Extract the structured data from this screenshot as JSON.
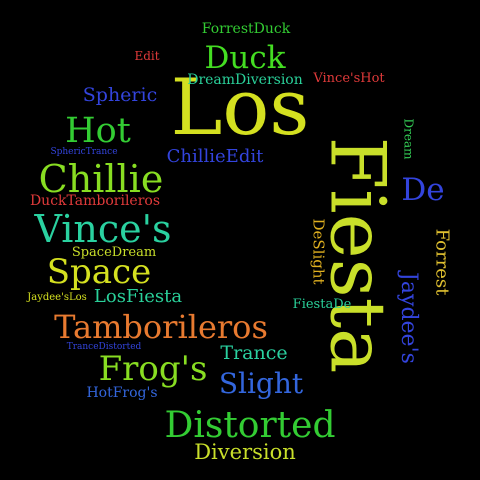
{
  "background": "#000000",
  "words": [
    {
      "id": "forrestduck",
      "text": "ForrestDuck",
      "color": "#33cc33",
      "rotated": false
    },
    {
      "id": "edit",
      "text": "Edit",
      "color": "#e03a3a",
      "rotated": false
    },
    {
      "id": "duck",
      "text": "Duck",
      "color": "#44dd22",
      "rotated": false
    },
    {
      "id": "los",
      "text": "Los",
      "color": "#d4e020",
      "rotated": false
    },
    {
      "id": "dreamdiversion",
      "text": "DreamDiversion",
      "color": "#2ad19a",
      "rotated": false
    },
    {
      "id": "vinceshot",
      "text": "Vince'sHot",
      "color": "#e03a3a",
      "rotated": false
    },
    {
      "id": "spheric",
      "text": "Spheric",
      "color": "#3344dd",
      "rotated": false
    },
    {
      "id": "hot",
      "text": "Hot",
      "color": "#33cc33",
      "rotated": false
    },
    {
      "id": "dream",
      "text": "Dream",
      "color": "#33cc55",
      "rotated": true
    },
    {
      "id": "spherictrance",
      "text": "SphericTrance",
      "color": "#3344dd",
      "rotated": false
    },
    {
      "id": "chillieedit",
      "text": "ChillieEdit",
      "color": "#3344dd",
      "rotated": false
    },
    {
      "id": "fiesta",
      "text": "Fiesta",
      "color": "#c9df2a",
      "rotated": true
    },
    {
      "id": "chillie",
      "text": "Chillie",
      "color": "#88dd22",
      "rotated": false
    },
    {
      "id": "de",
      "text": "De",
      "color": "#3344dd",
      "rotated": false
    },
    {
      "id": "ducktamborileros",
      "text": "DuckTamborileros",
      "color": "#e03a3a",
      "rotated": false
    },
    {
      "id": "vinces",
      "text": "Vince's",
      "color": "#2ad1a0",
      "rotated": false
    },
    {
      "id": "deslight",
      "text": "DeSlight",
      "color": "#e0b020",
      "rotated": true
    },
    {
      "id": "forrest",
      "text": "Forrest",
      "color": "#e0c030",
      "rotated": true
    },
    {
      "id": "spacedream",
      "text": "SpaceDream",
      "color": "#c9df2a",
      "rotated": false
    },
    {
      "id": "space",
      "text": "Space",
      "color": "#d4e020",
      "rotated": false
    },
    {
      "id": "jaydees",
      "text": "Jaydee's",
      "color": "#3344dd",
      "rotated": true
    },
    {
      "id": "jaydeeslos",
      "text": "Jaydee'sLos",
      "color": "#d4e020",
      "rotated": false
    },
    {
      "id": "losfiesta",
      "text": "LosFiesta",
      "color": "#2ad19a",
      "rotated": false
    },
    {
      "id": "fiestade",
      "text": "FiestaDe",
      "color": "#2ad19a",
      "rotated": false
    },
    {
      "id": "tamborileros",
      "text": "Tamborileros",
      "color": "#e87a30",
      "rotated": false
    },
    {
      "id": "trancedistorted",
      "text": "TranceDistorted",
      "color": "#3344dd",
      "rotated": false
    },
    {
      "id": "trance",
      "text": "Trance",
      "color": "#2ad1a0",
      "rotated": false
    },
    {
      "id": "frogs",
      "text": "Frog's",
      "color": "#88dd22",
      "rotated": false
    },
    {
      "id": "slight",
      "text": "Slight",
      "color": "#3366dd",
      "rotated": false
    },
    {
      "id": "hotfrogs",
      "text": "HotFrog's",
      "color": "#3366dd",
      "rotated": false
    },
    {
      "id": "distorted",
      "text": "Distorted",
      "color": "#33cc33",
      "rotated": false
    },
    {
      "id": "diversion",
      "text": "Diversion",
      "color": "#c9df2a",
      "rotated": false
    }
  ]
}
